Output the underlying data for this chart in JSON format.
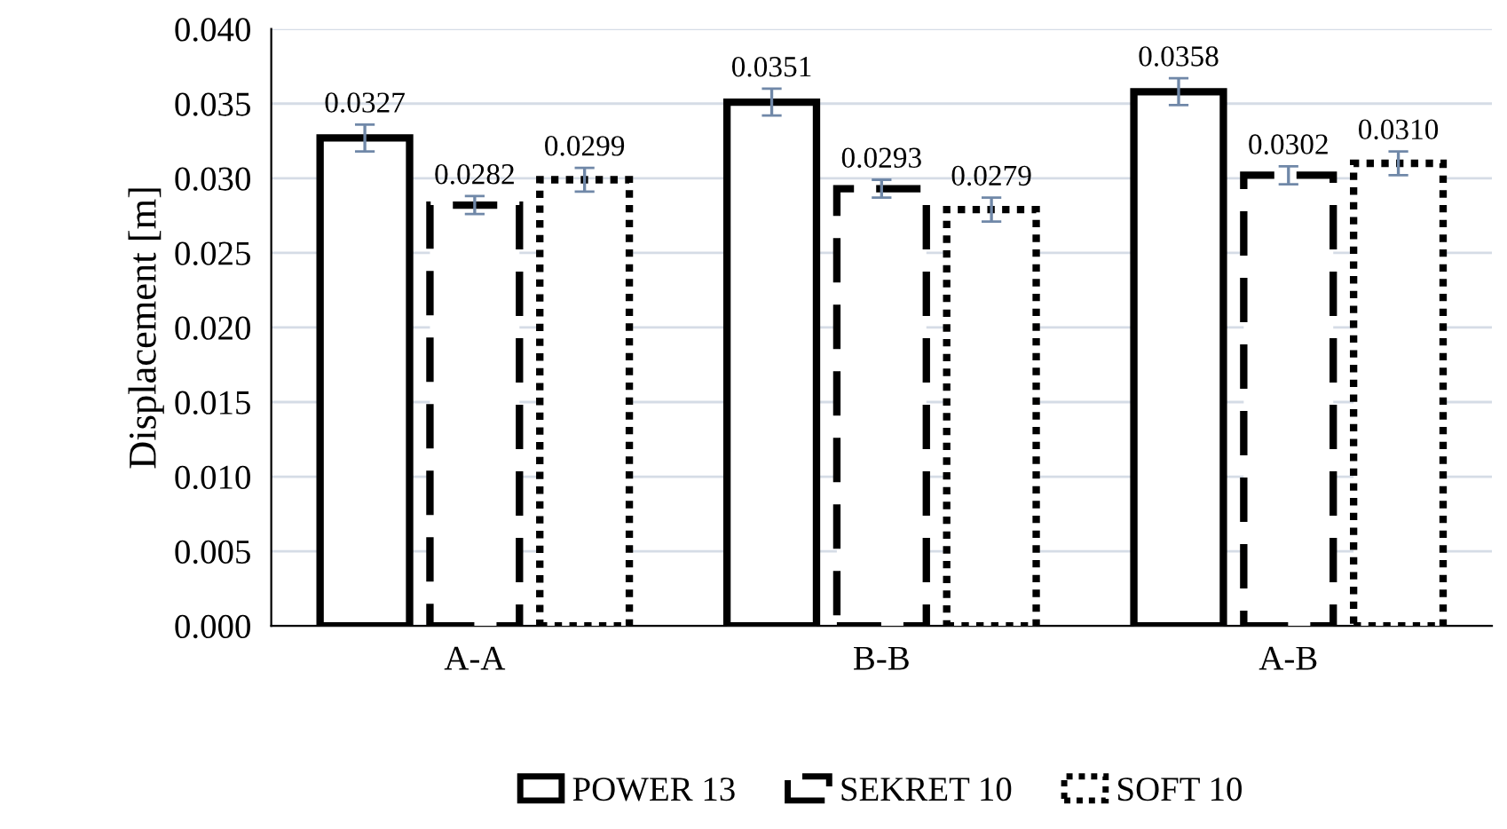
{
  "chart_data": {
    "type": "bar",
    "ylabel": "Displacement [m]",
    "categories": [
      "A-A",
      "B-B",
      "A-B"
    ],
    "series": [
      {
        "name": "POWER 13",
        "color": "#000000",
        "line_style": "solid",
        "values": [
          0.0327,
          0.0351,
          0.0358
        ],
        "errors": [
          0.0009,
          0.0009,
          0.0009
        ]
      },
      {
        "name": "SEKRET 10",
        "color": "#000000",
        "line_style": "dashed",
        "values": [
          0.0282,
          0.0293,
          0.0302
        ],
        "errors": [
          0.0006,
          0.0006,
          0.0006
        ]
      },
      {
        "name": "SOFT 10",
        "color": "#000000",
        "line_style": "dotted",
        "values": [
          0.0299,
          0.0279,
          0.031
        ],
        "errors": [
          0.0008,
          0.0008,
          0.0008
        ]
      }
    ],
    "ylim": [
      0,
      0.04
    ],
    "yticks": [
      {
        "value": 0,
        "label": "0.000"
      },
      {
        "value": 0.005,
        "label": "0.005"
      },
      {
        "value": 0.01,
        "label": "0.010"
      },
      {
        "value": 0.015,
        "label": "0.015"
      },
      {
        "value": 0.02,
        "label": "0.020"
      },
      {
        "value": 0.025,
        "label": "0.025"
      },
      {
        "value": 0.03,
        "label": "0.030"
      },
      {
        "value": 0.035,
        "label": "0.035"
      },
      {
        "value": 0.04,
        "label": "0.040"
      }
    ],
    "value_labels": [
      [
        "0.0327",
        "0.0351",
        "0.0358"
      ],
      [
        "0.0282",
        "0.0293",
        "0.0302"
      ],
      [
        "0.0299",
        "0.0279",
        "0.0310"
      ]
    ],
    "grid": "y",
    "legend": "bottom"
  }
}
